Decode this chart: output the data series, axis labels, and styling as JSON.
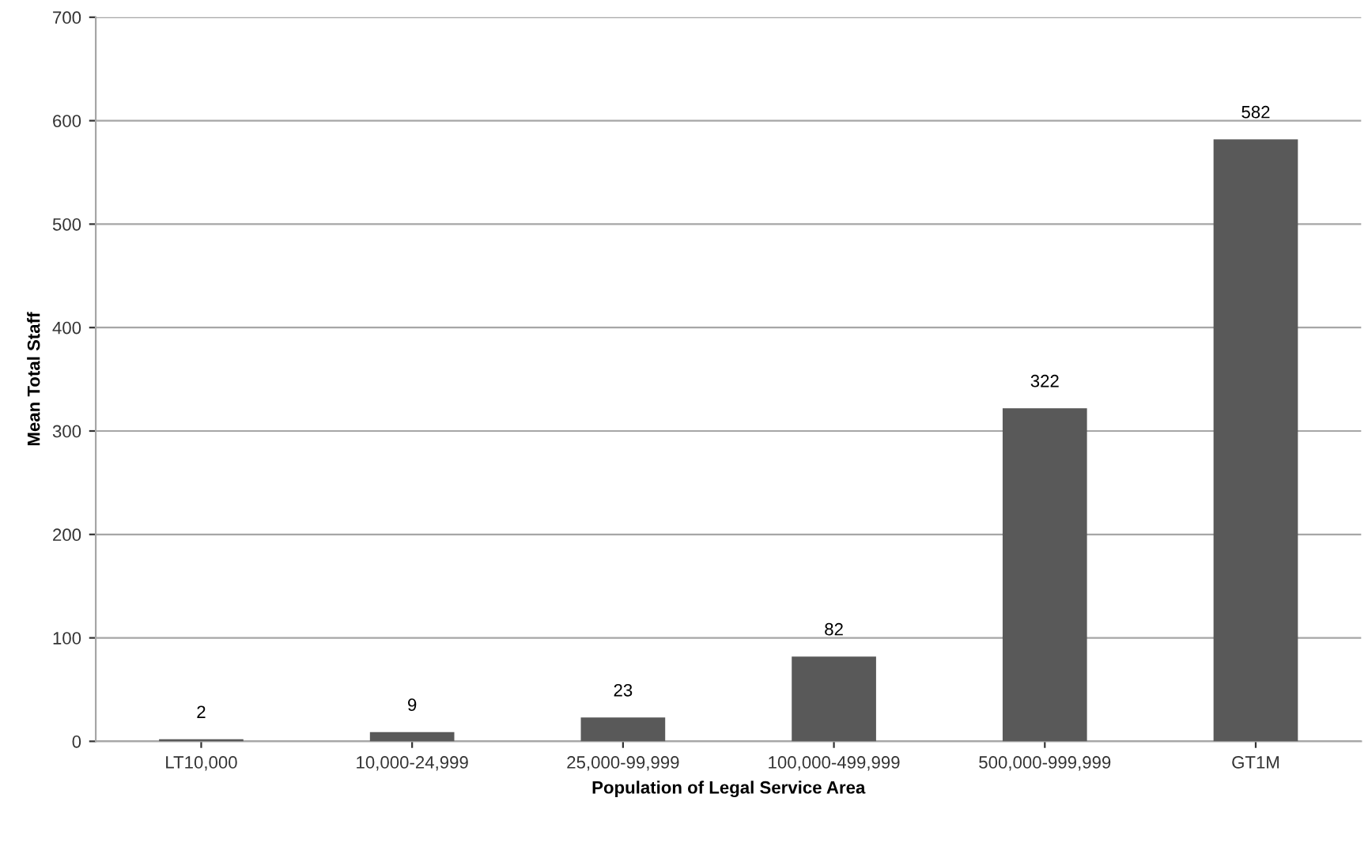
{
  "chart_data": {
    "type": "bar",
    "categories": [
      "LT10,000",
      "10,000-24,999",
      "25,000-99,999",
      "100,000-499,999",
      "500,000-999,999",
      "GT1M"
    ],
    "values": [
      2,
      9,
      23,
      82,
      322,
      582
    ],
    "color": "#595959",
    "xlabel": "Population of Legal Service Area",
    "ylabel": "Mean Total Staff",
    "ylim": [
      0,
      700
    ],
    "yticks": [
      0,
      100,
      200,
      300,
      400,
      500,
      600,
      700
    ],
    "grid": "y",
    "data_labels": true
  }
}
